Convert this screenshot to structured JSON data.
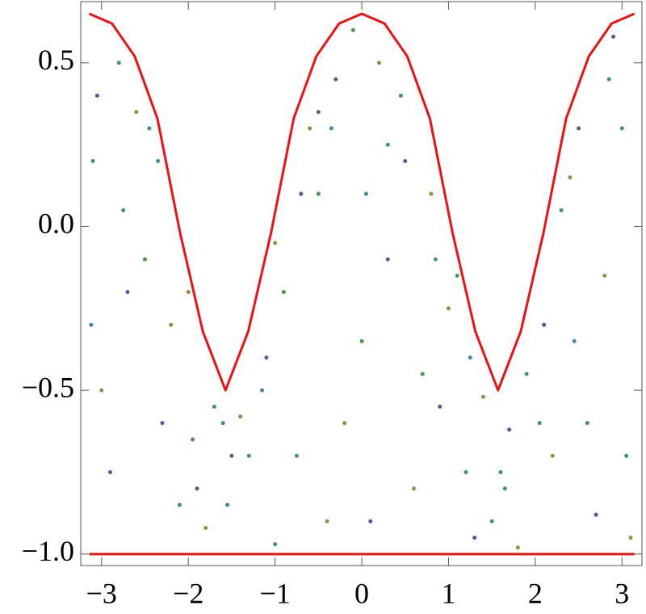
{
  "chart_data": {
    "type": "scatter",
    "xlim": [
      -3.24,
      3.23
    ],
    "ylim": [
      -1.035,
      0.687
    ],
    "xticks": [
      {
        "value": -3,
        "label": "−3"
      },
      {
        "value": -2,
        "label": "−2"
      },
      {
        "value": -1,
        "label": "−1"
      },
      0,
      1,
      2,
      3
    ],
    "yticks": [
      {
        "value": -1,
        "label": "−1.0"
      },
      {
        "value": -0.5,
        "label": "−0.5"
      },
      {
        "value": 0,
        "label": "0.0"
      },
      0.5
    ],
    "series": [
      {
        "mode": "points",
        "color": "#6a4c9c",
        "x": [
          -3.05,
          -2.7,
          -2.3,
          -1.9,
          -1.5,
          -1.1,
          -0.7,
          -0.3,
          0.1,
          0.5,
          0.9,
          1.3,
          1.7,
          2.1,
          2.5,
          2.9,
          -2.9,
          -0.5,
          0.3,
          2.7
        ],
        "values": [
          0.4,
          -0.2,
          -0.6,
          -0.8,
          -0.7,
          -0.4,
          0.1,
          0.45,
          -0.9,
          0.2,
          -0.55,
          -0.95,
          -0.62,
          -0.3,
          0.3,
          0.58,
          -0.75,
          0.35,
          -0.1,
          -0.88
        ]
      },
      {
        "mode": "points",
        "color": "#3f9a4f",
        "x": [
          -3.1,
          -2.8,
          -2.5,
          -2.1,
          -1.7,
          -1.3,
          -0.9,
          -0.5,
          -0.1,
          0.3,
          0.7,
          1.1,
          1.5,
          1.9,
          2.3,
          2.6,
          3.0,
          -1.0,
          0.0,
          1.6
        ],
        "values": [
          0.2,
          0.5,
          -0.1,
          -0.85,
          -0.55,
          -0.7,
          -0.2,
          0.1,
          0.6,
          0.25,
          -0.45,
          -0.15,
          -0.9,
          -0.45,
          0.05,
          -0.6,
          0.3,
          -0.97,
          -0.35,
          -0.75
        ]
      },
      {
        "mode": "points",
        "color": "#9c8b3a",
        "x": [
          -3.0,
          -2.6,
          -2.2,
          -1.8,
          -1.4,
          -1.0,
          -0.6,
          -0.2,
          0.2,
          0.6,
          1.0,
          1.4,
          1.8,
          2.2,
          2.4,
          2.8,
          3.1,
          -2.0,
          0.8,
          -0.4
        ],
        "values": [
          -0.5,
          0.35,
          -0.3,
          -0.92,
          -0.58,
          -0.05,
          0.3,
          -0.6,
          0.5,
          -0.8,
          -0.25,
          -0.52,
          -0.98,
          -0.7,
          0.15,
          -0.15,
          -0.95,
          -0.2,
          0.1,
          -0.9
        ]
      },
      {
        "mode": "points",
        "color": "#3a8ca0",
        "x": [
          -3.12,
          -2.75,
          -2.35,
          -1.95,
          -1.55,
          -1.15,
          -0.75,
          -0.35,
          0.05,
          0.45,
          0.85,
          1.25,
          1.65,
          2.05,
          2.45,
          2.85,
          3.05,
          -1.6,
          1.2,
          -2.45
        ],
        "values": [
          -0.3,
          0.05,
          0.2,
          -0.65,
          -0.85,
          -0.5,
          -0.7,
          0.3,
          0.1,
          0.4,
          -0.1,
          -0.4,
          -0.8,
          -0.6,
          -0.35,
          0.45,
          -0.7,
          -0.6,
          -0.75,
          0.3
        ]
      },
      {
        "mode": "line",
        "color": "#ee1111",
        "x": [
          -3.142,
          -2.88,
          -2.618,
          -2.356,
          -2.094,
          -1.833,
          -1.571,
          -1.309,
          -1.047,
          -0.785,
          -0.524,
          -0.262,
          0,
          0.262,
          0.524,
          0.785,
          1.047,
          1.309,
          1.571,
          1.833,
          2.094,
          2.356,
          2.618,
          2.88,
          3.142
        ],
        "values": [
          0.65,
          0.62,
          0.52,
          0.33,
          -0.02,
          -0.32,
          -0.5,
          -0.32,
          -0.02,
          0.33,
          0.52,
          0.62,
          0.65,
          0.62,
          0.52,
          0.33,
          -0.02,
          -0.32,
          -0.5,
          -0.32,
          -0.02,
          0.33,
          0.52,
          0.62,
          0.65
        ]
      },
      {
        "mode": "line",
        "color": "#ee1111",
        "x": [
          -3.142,
          3.142
        ],
        "values": [
          -1,
          -1
        ]
      }
    ]
  }
}
